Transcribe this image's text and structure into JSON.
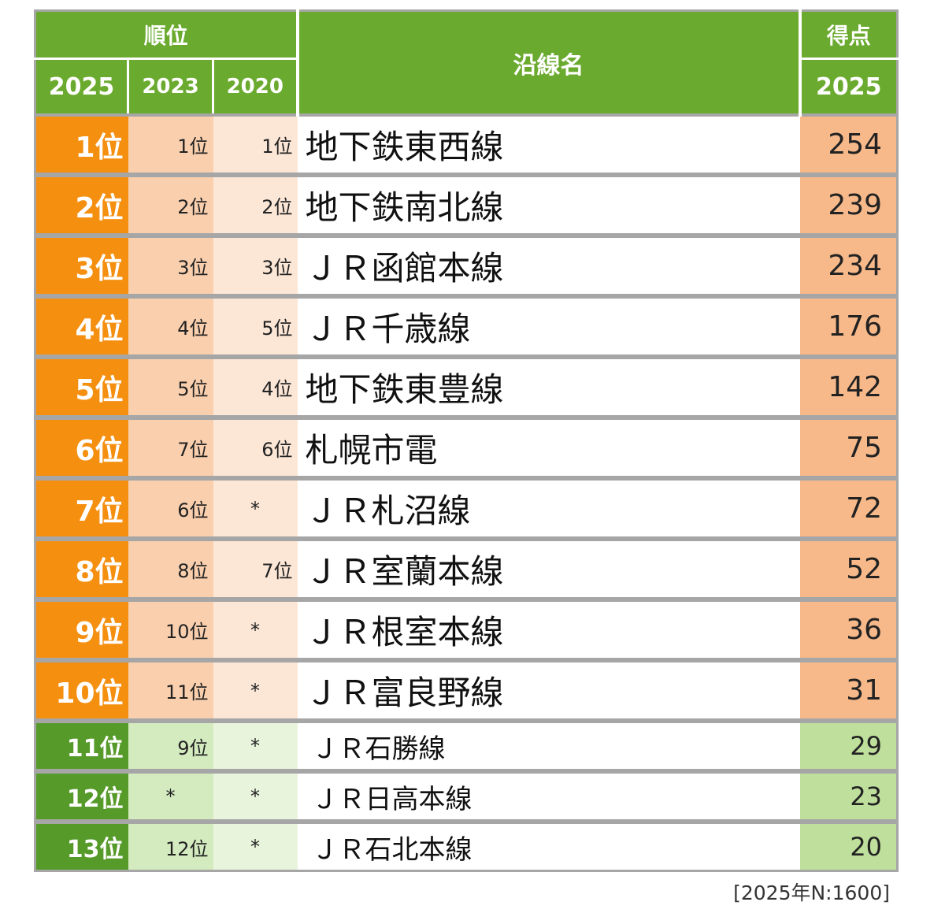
{
  "chart_data": {
    "type": "table",
    "headers": {
      "rank_group": "順位",
      "rank_years": [
        "2025",
        "2023",
        "2020"
      ],
      "line_name": "沿線名",
      "score_group": "得点",
      "score_year": "2025"
    },
    "rows": [
      {
        "rank_2025": "1位",
        "rank_2023": "1位",
        "rank_2020": "1位",
        "line": "地下鉄東西線",
        "score": 254,
        "score_label": "254"
      },
      {
        "rank_2025": "2位",
        "rank_2023": "2位",
        "rank_2020": "2位",
        "line": "地下鉄南北線",
        "score": 239,
        "score_label": "239"
      },
      {
        "rank_2025": "3位",
        "rank_2023": "3位",
        "rank_2020": "3位",
        "line": "ＪＲ函館本線",
        "score": 234,
        "score_label": "234"
      },
      {
        "rank_2025": "4位",
        "rank_2023": "4位",
        "rank_2020": "5位",
        "line": "ＪＲ千歳線",
        "score": 176,
        "score_label": "176"
      },
      {
        "rank_2025": "5位",
        "rank_2023": "5位",
        "rank_2020": "4位",
        "line": "地下鉄東豊線",
        "score": 142,
        "score_label": "142"
      },
      {
        "rank_2025": "6位",
        "rank_2023": "7位",
        "rank_2020": "6位",
        "line": "札幌市電",
        "score": 75,
        "score_label": "75"
      },
      {
        "rank_2025": "7位",
        "rank_2023": "6位",
        "rank_2020": "*",
        "line": "ＪＲ札沼線",
        "score": 72,
        "score_label": "72"
      },
      {
        "rank_2025": "8位",
        "rank_2023": "8位",
        "rank_2020": "7位",
        "line": "ＪＲ室蘭本線",
        "score": 52,
        "score_label": "52"
      },
      {
        "rank_2025": "9位",
        "rank_2023": "10位",
        "rank_2020": "*",
        "line": "ＪＲ根室本線",
        "score": 36,
        "score_label": "36"
      },
      {
        "rank_2025": "10位",
        "rank_2023": "11位",
        "rank_2020": "*",
        "line": "ＪＲ富良野線",
        "score": 31,
        "score_label": "31"
      },
      {
        "rank_2025": "11位",
        "rank_2023": "9位",
        "rank_2020": "*",
        "line": "ＪＲ石勝線",
        "score": 29,
        "score_label": "29"
      },
      {
        "rank_2025": "12位",
        "rank_2023": "*",
        "rank_2020": "*",
        "line": "ＪＲ日高本線",
        "score": 23,
        "score_label": "23"
      },
      {
        "rank_2025": "13位",
        "rank_2023": "12位",
        "rank_2020": "*",
        "line": "ＪＲ石北本線",
        "score": 20,
        "score_label": "20"
      }
    ],
    "top_group_size": 10,
    "note": "[2025年N:1600]"
  },
  "colors": {
    "header_green": "#6aaa2e",
    "top_rank": "#f58f10",
    "top_score": "#f7b98a",
    "low_rank": "#569a2a",
    "low_score": "#bfe09c"
  }
}
